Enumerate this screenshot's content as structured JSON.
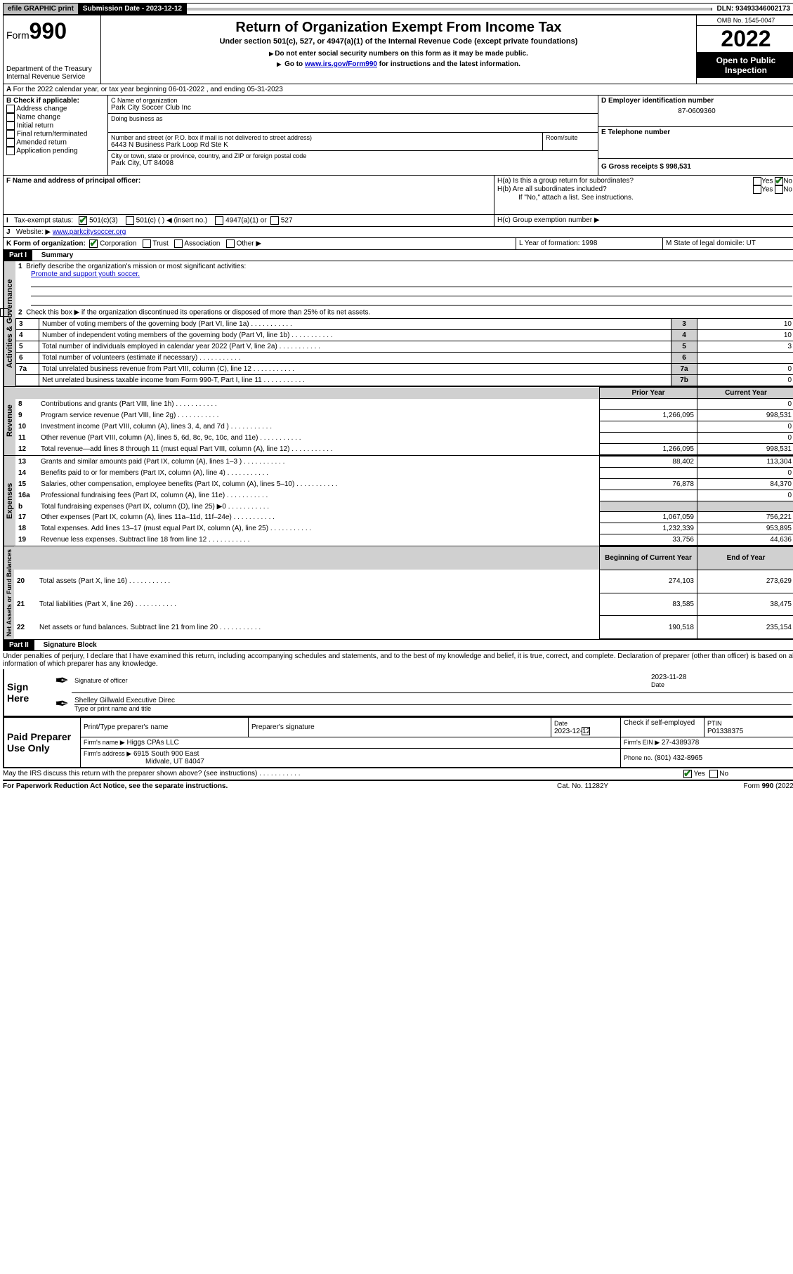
{
  "topbar": {
    "efile": "efile GRAPHIC print",
    "submission": "Submission Date - 2023-12-12",
    "dln": "DLN: 93493346002173"
  },
  "header": {
    "form_label": "Form",
    "form_number": "990",
    "title": "Return of Organization Exempt From Income Tax",
    "subtitle": "Under section 501(c), 527, or 4947(a)(1) of the Internal Revenue Code (except private foundations)",
    "warn1": "Do not enter social security numbers on this form as it may be made public.",
    "warn2_pre": "Go to ",
    "warn2_link": "www.irs.gov/Form990",
    "warn2_post": " for instructions and the latest information.",
    "dept": "Department of the Treasury",
    "irs": "Internal Revenue Service",
    "omb": "OMB No. 1545-0047",
    "year": "2022",
    "open": "Open to Public Inspection"
  },
  "blockA": {
    "a_line": "For the 2022 calendar year, or tax year beginning 06-01-2022    , and ending 05-31-2023",
    "b_label": "B Check if applicable:",
    "b_items": [
      "Address change",
      "Name change",
      "Initial return",
      "Final return/terminated",
      "Amended return",
      "Application pending"
    ],
    "c_label": "C Name of organization",
    "c_name": "Park City Soccer Club Inc",
    "dba_label": "Doing business as",
    "addr_label": "Number and street (or P.O. box if mail is not delivered to street address)",
    "room_label": "Room/suite",
    "addr": "6443 N Business Park Loop Rd Ste K",
    "city_label": "City or town, state or province, country, and ZIP or foreign postal code",
    "city": "Park City, UT  84098",
    "d_label": "D Employer identification number",
    "d_val": "87-0609360",
    "e_label": "E Telephone number",
    "g_label": "G Gross receipts $ 998,531",
    "f_label": "F Name and address of principal officer:",
    "ha": "H(a)  Is this a group return for subordinates?",
    "hb": "H(b)  Are all subordinates included?",
    "hb_note": "If \"No,\" attach a list. See instructions.",
    "hc": "H(c)  Group exemption number ▶",
    "yes": "Yes",
    "no": "No",
    "i_label": "Tax-exempt status:",
    "i_501c3": "501(c)(3)",
    "i_501c": "501(c) (   ) ◀ (insert no.)",
    "i_4947": "4947(a)(1) or",
    "i_527": "527",
    "j_label": "Website: ▶",
    "j_val": "www.parkcitysoccer.org",
    "k_label": "K Form of organization:",
    "k_corp": "Corporation",
    "k_trust": "Trust",
    "k_assoc": "Association",
    "k_other": "Other ▶",
    "l_label": "L Year of formation: 1998",
    "m_label": "M State of legal domicile: UT"
  },
  "part1": {
    "title": "Part I",
    "summary": "Summary",
    "q1": "Briefly describe the organization's mission or most significant activities:",
    "q1a": "Promote and support youth soccer.",
    "q2": "Check this box ▶         if the organization discontinued its operations or disposed of more than 25% of its net assets.",
    "rows_gov": [
      {
        "n": "3",
        "t": "Number of voting members of the governing body (Part VI, line 1a)",
        "box": "3",
        "v": "10"
      },
      {
        "n": "4",
        "t": "Number of independent voting members of the governing body (Part VI, line 1b)",
        "box": "4",
        "v": "10"
      },
      {
        "n": "5",
        "t": "Total number of individuals employed in calendar year 2022 (Part V, line 2a)",
        "box": "5",
        "v": "3"
      },
      {
        "n": "6",
        "t": "Total number of volunteers (estimate if necessary)",
        "box": "6",
        "v": ""
      },
      {
        "n": "7a",
        "t": "Total unrelated business revenue from Part VIII, column (C), line 12",
        "box": "7a",
        "v": "0"
      },
      {
        "n": "",
        "t": "Net unrelated business taxable income from Form 990-T, Part I, line 11",
        "box": "7b",
        "v": "0"
      }
    ],
    "prior": "Prior Year",
    "current": "Current Year",
    "rev": [
      {
        "n": "8",
        "t": "Contributions and grants (Part VIII, line 1h)",
        "p": "",
        "c": "0"
      },
      {
        "n": "9",
        "t": "Program service revenue (Part VIII, line 2g)",
        "p": "1,266,095",
        "c": "998,531"
      },
      {
        "n": "10",
        "t": "Investment income (Part VIII, column (A), lines 3, 4, and 7d )",
        "p": "",
        "c": "0"
      },
      {
        "n": "11",
        "t": "Other revenue (Part VIII, column (A), lines 5, 6d, 8c, 9c, 10c, and 11e)",
        "p": "",
        "c": "0"
      },
      {
        "n": "12",
        "t": "Total revenue—add lines 8 through 11 (must equal Part VIII, column (A), line 12)",
        "p": "1,266,095",
        "c": "998,531"
      }
    ],
    "exp": [
      {
        "n": "13",
        "t": "Grants and similar amounts paid (Part IX, column (A), lines 1–3 )",
        "p": "88,402",
        "c": "113,304"
      },
      {
        "n": "14",
        "t": "Benefits paid to or for members (Part IX, column (A), line 4)",
        "p": "",
        "c": "0"
      },
      {
        "n": "15",
        "t": "Salaries, other compensation, employee benefits (Part IX, column (A), lines 5–10)",
        "p": "76,878",
        "c": "84,370"
      },
      {
        "n": "16a",
        "t": "Professional fundraising fees (Part IX, column (A), line 11e)",
        "p": "",
        "c": "0"
      },
      {
        "n": "b",
        "t": "Total fundraising expenses (Part IX, column (D), line 25) ▶0",
        "p": "shade",
        "c": "shade"
      },
      {
        "n": "17",
        "t": "Other expenses (Part IX, column (A), lines 11a–11d, 11f–24e)",
        "p": "1,067,059",
        "c": "756,221"
      },
      {
        "n": "18",
        "t": "Total expenses. Add lines 13–17 (must equal Part IX, column (A), line 25)",
        "p": "1,232,339",
        "c": "953,895"
      },
      {
        "n": "19",
        "t": "Revenue less expenses. Subtract line 18 from line 12",
        "p": "33,756",
        "c": "44,636"
      }
    ],
    "begin": "Beginning of Current Year",
    "end": "End of Year",
    "na": [
      {
        "n": "20",
        "t": "Total assets (Part X, line 16)",
        "p": "274,103",
        "c": "273,629"
      },
      {
        "n": "21",
        "t": "Total liabilities (Part X, line 26)",
        "p": "83,585",
        "c": "38,475"
      },
      {
        "n": "22",
        "t": "Net assets or fund balances. Subtract line 21 from line 20",
        "p": "190,518",
        "c": "235,154"
      }
    ],
    "vlabels": {
      "gov": "Activities & Governance",
      "rev": "Revenue",
      "exp": "Expenses",
      "na": "Net Assets or Fund Balances"
    }
  },
  "part2": {
    "title": "Part II",
    "sig": "Signature Block",
    "penalty": "Under penalties of perjury, I declare that I have examined this return, including accompanying schedules and statements, and to the best of my knowledge and belief, it is true, correct, and complete. Declaration of preparer (other than officer) is based on all information of which preparer has any knowledge.",
    "sign_here": "Sign Here",
    "sig_officer": "Signature of officer",
    "date": "Date",
    "sig_date_val": "2023-11-28",
    "officer_name": "Shelley Gillwald  Executive Direc",
    "type_name": "Type or print name and title",
    "paid": "Paid Preparer Use Only",
    "p_name": "Print/Type preparer's name",
    "p_sig": "Preparer's signature",
    "p_date_lbl": "Date",
    "p_date": "2023-12-12",
    "p_check": "Check          if self-employed",
    "ptin_lbl": "PTIN",
    "ptin": "P01338375",
    "firm_name_lbl": "Firm's name     ▶",
    "firm_name": "Higgs CPAs LLC",
    "firm_ein_lbl": "Firm's EIN ▶",
    "firm_ein": "27-4389378",
    "firm_addr_lbl": "Firm's address ▶",
    "firm_addr": "6915 South 900 East",
    "firm_addr2": "Midvale, UT  84047",
    "phone_lbl": "Phone no.",
    "phone": "(801) 432-8965",
    "may_irs": "May the IRS discuss this return with the preparer shown above? (see instructions)",
    "paperwork": "For Paperwork Reduction Act Notice, see the separate instructions.",
    "cat": "Cat. No. 11282Y",
    "form_foot": "Form 990 (2022)"
  }
}
